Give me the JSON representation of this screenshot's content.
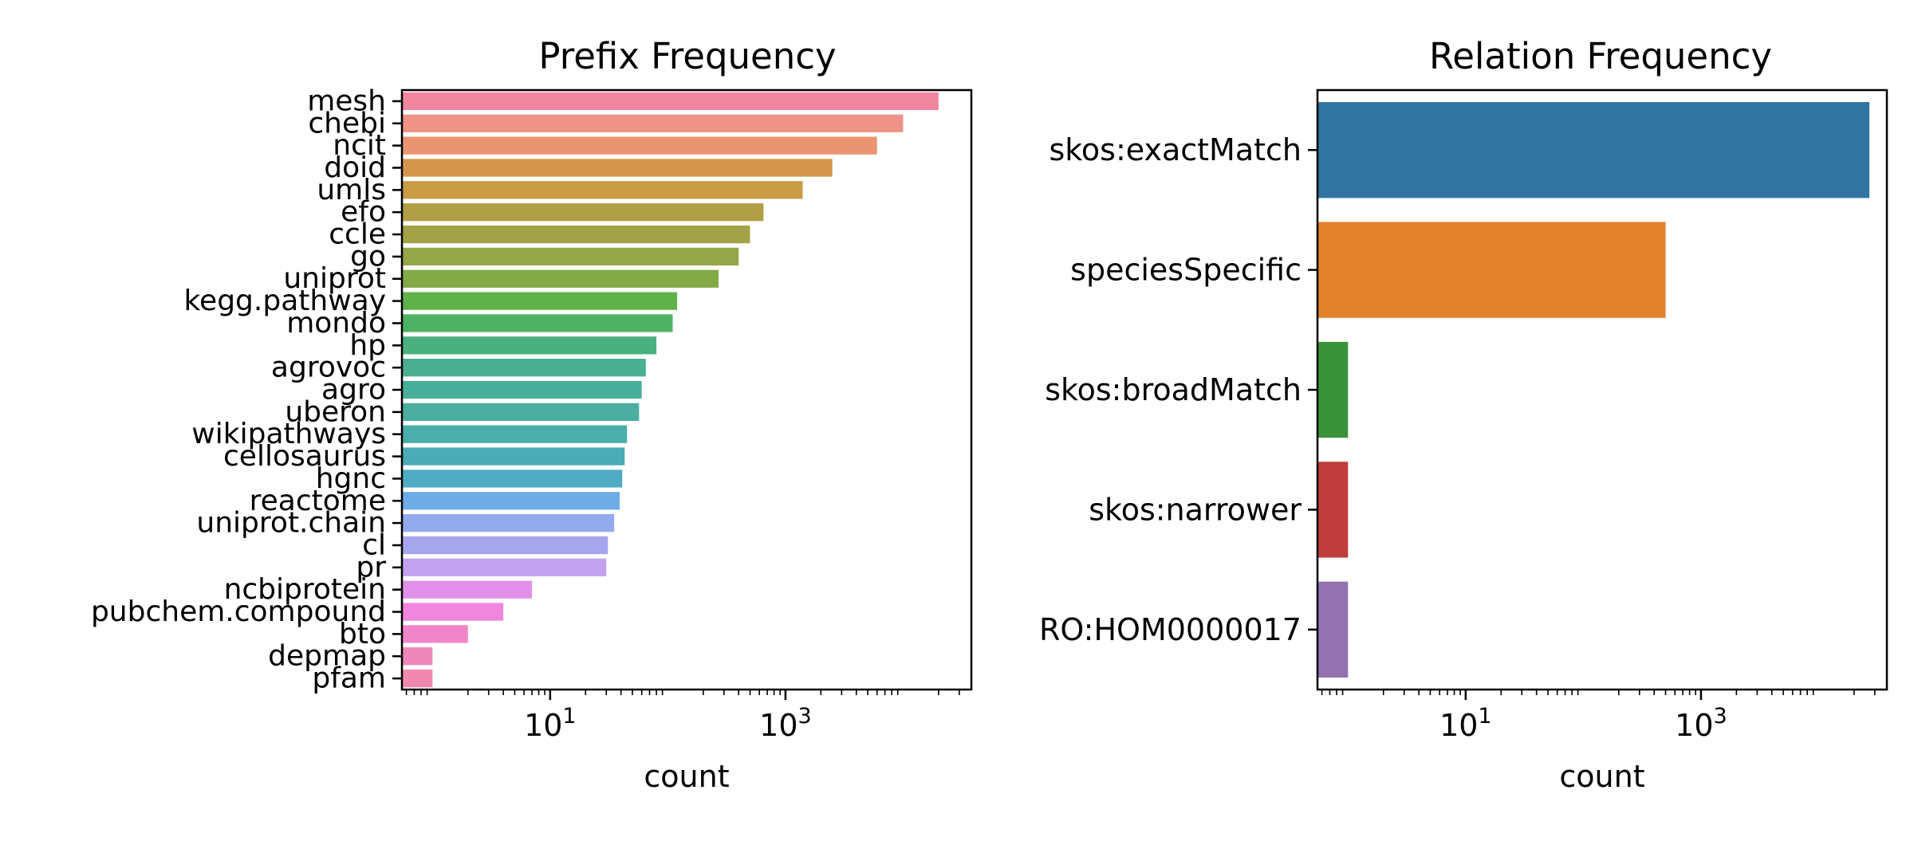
{
  "chart_data": [
    {
      "type": "bar",
      "orientation": "horizontal",
      "title": "Prefix Frequency",
      "xlabel": "count",
      "ylabel": "",
      "xscale": "log",
      "xlim": [
        0.55,
        38000
      ],
      "xticks": [
        {
          "value": 10,
          "base": "10",
          "exp": "1"
        },
        {
          "value": 1000,
          "base": "10",
          "exp": "3"
        }
      ],
      "grid": false,
      "legend": "none",
      "categories": [
        "mesh",
        "chebi",
        "ncit",
        "doid",
        "umls",
        "efo",
        "ccle",
        "go",
        "uniprot",
        "kegg.pathway",
        "mondo",
        "hp",
        "agrovoc",
        "agro",
        "uberon",
        "wikipathways",
        "cellosaurus",
        "hgnc",
        "reactome",
        "uniprot.chain",
        "cl",
        "pr",
        "ncbiprotein",
        "pubchem.compound",
        "bto",
        "depmap",
        "pfam"
      ],
      "values": [
        20000,
        10000,
        6000,
        2500,
        1400,
        650,
        500,
        400,
        270,
        120,
        110,
        80,
        65,
        60,
        57,
        45,
        43,
        41,
        39,
        35,
        31,
        30,
        7,
        4,
        2,
        1,
        1
      ],
      "colors": [
        "#f0879e",
        "#ef9288",
        "#e99571",
        "#d4964b",
        "#c89b45",
        "#b09f44",
        "#a3a246",
        "#94a648",
        "#83aa46",
        "#5fb14b",
        "#4db264",
        "#4ab07f",
        "#4aaf91",
        "#49ae99",
        "#4bae9f",
        "#4aaeaa",
        "#4bacb6",
        "#4eabc2",
        "#6eace7",
        "#94aaee",
        "#a8a5ef",
        "#c2a2ef",
        "#e190ea",
        "#f086dd",
        "#f086c9",
        "#f087ba",
        "#f089ad"
      ]
    },
    {
      "type": "bar",
      "orientation": "horizontal",
      "title": "Relation Frequency",
      "xlabel": "count",
      "ylabel": "",
      "xscale": "log",
      "xlim": [
        0.55,
        38000
      ],
      "xticks": [
        {
          "value": 10,
          "base": "10",
          "exp": "1"
        },
        {
          "value": 1000,
          "base": "10",
          "exp": "3"
        }
      ],
      "grid": false,
      "legend": "none",
      "categories": [
        "skos:exactMatch",
        "speciesSpecific",
        "skos:broadMatch",
        "skos:narrower",
        "RO:HOM0000017"
      ],
      "values": [
        27000,
        500,
        1,
        1,
        1
      ],
      "colors": [
        "#3274a1",
        "#e1812c",
        "#3a923a",
        "#c03d3e",
        "#9372b2"
      ]
    }
  ]
}
